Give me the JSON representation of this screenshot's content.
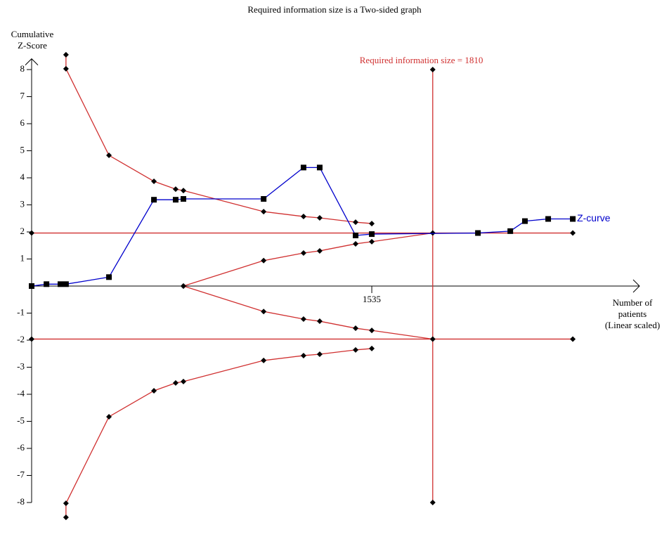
{
  "chart_data": {
    "type": "line",
    "title": "Required information size is a Two-sided graph",
    "y_label": [
      "Cumulative",
      "Z-Score"
    ],
    "x_label": [
      "Number of",
      "patients",
      "(Linear scaled)"
    ],
    "annotation": "Required information size = 1810",
    "xlim": [
      0,
      2743
    ],
    "ylim": [
      -8.6,
      8.4
    ],
    "xticks": [
      1535
    ],
    "yticks": [
      -8,
      -7,
      -6,
      -5,
      -4,
      -3,
      -2,
      -1,
      1,
      2,
      3,
      4,
      5,
      6,
      7,
      8
    ],
    "series": [
      {
        "color": "#d03030",
        "marker": "diamond",
        "x": [
          0,
          2442
        ],
        "values": [
          1.96,
          1.96
        ]
      },
      {
        "color": "#d03030",
        "marker": "diamond",
        "x": [
          0,
          2442
        ],
        "values": [
          -1.96,
          -1.96
        ]
      },
      {
        "color": "#d03030",
        "marker": "diamond",
        "x": [
          1810,
          1810
        ],
        "values": [
          -8,
          8
        ]
      },
      {
        "color": "#d03030",
        "marker": "diamond",
        "x": [
          155,
          155,
          349,
          552,
          650,
          685,
          1047,
          1227,
          1300,
          1462,
          1535
        ],
        "values": [
          8.55,
          8.03,
          4.83,
          3.87,
          3.58,
          3.53,
          2.75,
          2.57,
          2.52,
          2.36,
          2.31
        ]
      },
      {
        "color": "#d03030",
        "marker": "diamond",
        "x": [
          155,
          155,
          349,
          552,
          650,
          685,
          1047,
          1227,
          1300,
          1462,
          1535
        ],
        "values": [
          -8.55,
          -8.03,
          -4.83,
          -3.87,
          -3.58,
          -3.53,
          -2.75,
          -2.57,
          -2.52,
          -2.36,
          -2.31
        ]
      },
      {
        "color": "#d03030",
        "marker": "diamond",
        "x": [
          685,
          1047,
          1227,
          1300,
          1462,
          1535,
          1810
        ],
        "values": [
          0,
          0.94,
          1.22,
          1.3,
          1.56,
          1.64,
          1.96
        ]
      },
      {
        "color": "#d03030",
        "marker": "diamond",
        "x": [
          685,
          1047,
          1227,
          1300,
          1462,
          1535,
          1810
        ],
        "values": [
          0,
          -0.94,
          -1.22,
          -1.3,
          -1.56,
          -1.64,
          -1.96
        ]
      },
      {
        "name": "Z-curve",
        "color": "#0000cc",
        "marker": "square",
        "x": [
          0,
          67,
          130,
          155,
          349,
          552,
          650,
          685,
          1047,
          1227,
          1300,
          1462,
          1535,
          2014,
          2160,
          2226,
          2331,
          2442
        ],
        "values": [
          0,
          0.07,
          0.07,
          0.07,
          0.33,
          3.19,
          3.19,
          3.22,
          3.22,
          4.38,
          4.38,
          1.87,
          1.92,
          1.96,
          2.03,
          2.4,
          2.48,
          2.48
        ]
      }
    ]
  }
}
